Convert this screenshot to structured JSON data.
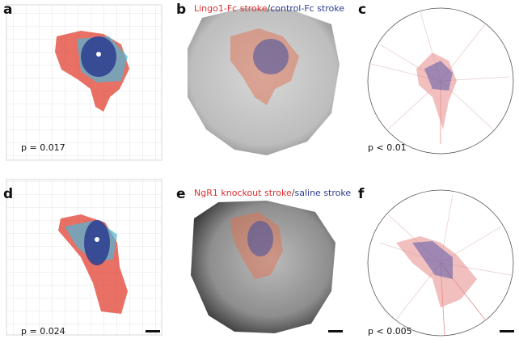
{
  "panels": [
    {
      "label": "a",
      "stat": "p = 0.017"
    },
    {
      "label": "b",
      "legend": [
        "Lingo1-Fc stroke",
        "/",
        "control-Fc stroke"
      ]
    },
    {
      "label": "c",
      "stat": "p < 0.01"
    },
    {
      "label": "d",
      "stat": "p = 0.024"
    },
    {
      "label": "e",
      "legend": [
        "NgR1 knockout stroke",
        "/",
        "saline stroke"
      ]
    },
    {
      "label": "f",
      "stat": "p < 0.005"
    }
  ]
}
